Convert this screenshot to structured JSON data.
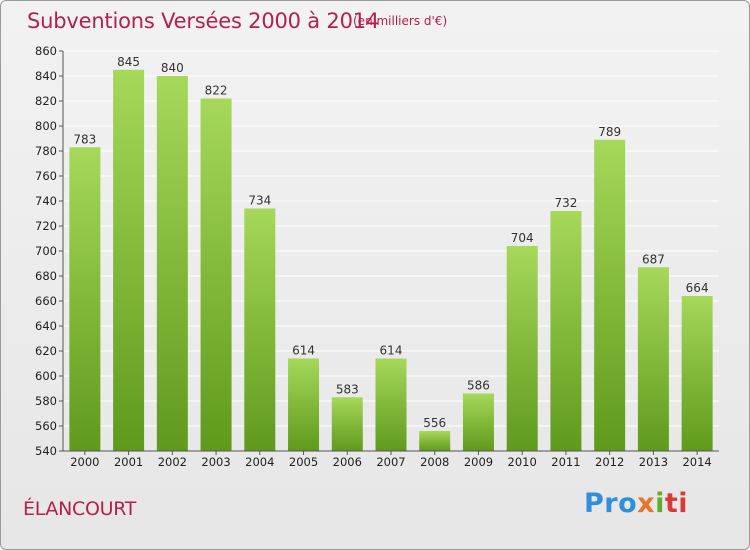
{
  "header": {
    "title": "Subventions Versées 2000 à 2014",
    "unit": "(en milliers d'€)"
  },
  "footer": {
    "commune": "ÉLANCOURT",
    "logo": [
      "Pro",
      "x",
      "i",
      "ti"
    ]
  },
  "colors": {
    "accent": "#b51f4a",
    "bar_top": "#a6d85a",
    "bar_bottom": "#5f9a1c",
    "grid": "#ffffff"
  },
  "chart_data": {
    "type": "bar",
    "title": "Subventions Versées 2000 à 2014",
    "categories": [
      "2000",
      "2001",
      "2002",
      "2003",
      "2004",
      "2005",
      "2006",
      "2007",
      "2008",
      "2009",
      "2010",
      "2011",
      "2012",
      "2013",
      "2014"
    ],
    "values": [
      783,
      845,
      840,
      822,
      734,
      614,
      583,
      614,
      556,
      586,
      704,
      732,
      789,
      687,
      664
    ],
    "ylim": [
      540,
      860
    ],
    "yticks": [
      540,
      560,
      580,
      600,
      620,
      640,
      660,
      680,
      700,
      720,
      740,
      760,
      780,
      800,
      820,
      840,
      860
    ],
    "grid": true,
    "xlabel": "",
    "ylabel": ""
  }
}
